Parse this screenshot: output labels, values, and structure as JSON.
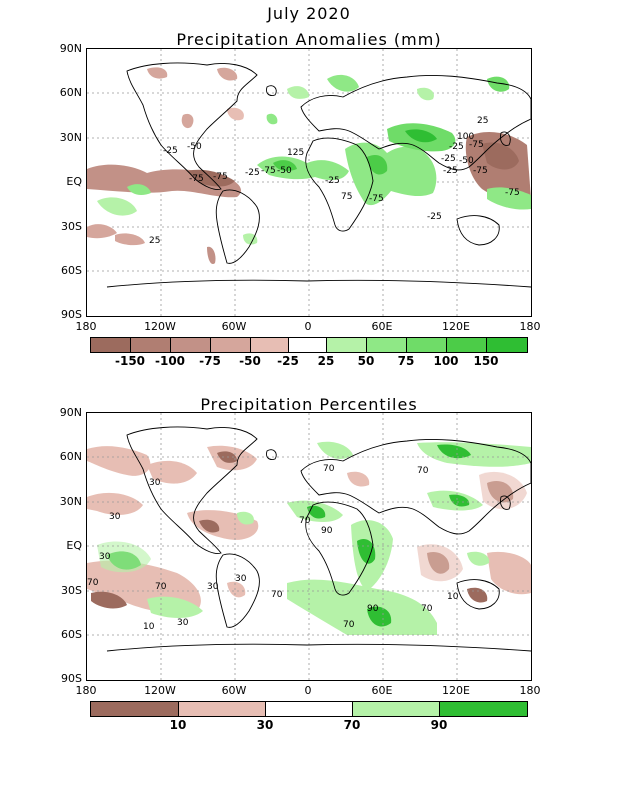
{
  "title": "July 2020",
  "panels": [
    {
      "title": "Precipitation Anomalies (mm)",
      "lat_labels": [
        "90N",
        "60N",
        "30N",
        "EQ",
        "30S",
        "60S",
        "90S"
      ],
      "lon_labels": [
        "180",
        "120W",
        "60W",
        "0",
        "60E",
        "120E",
        "180"
      ],
      "legend": {
        "labels": [
          "-150",
          "-100",
          "-75",
          "-50",
          "-25",
          "25",
          "50",
          "75",
          "100",
          "150"
        ],
        "colors": [
          "#9c6b5e",
          "#b07e72",
          "#c29187",
          "#d5a69c",
          "#e7beb4",
          "#ffffff",
          "#b5f2a8",
          "#8fe886",
          "#6fdc68",
          "#4ccc48",
          "#2fbe33"
        ]
      },
      "contour_labels": [
        "-50",
        "-25",
        "-75",
        "-75",
        "25",
        "-25",
        "-75",
        "-50",
        "125",
        "-25",
        "-75",
        "75",
        "100",
        "-25",
        "-50",
        "-25",
        "-75",
        "-25",
        "-75",
        "-25",
        "-75",
        "25"
      ]
    },
    {
      "title": "Precipitation Percentiles",
      "lat_labels": [
        "90N",
        "60N",
        "30N",
        "EQ",
        "30S",
        "60S",
        "90S"
      ],
      "lon_labels": [
        "180",
        "120W",
        "60W",
        "0",
        "60E",
        "120E",
        "180"
      ],
      "legend": {
        "labels": [
          "10",
          "30",
          "70",
          "90"
        ],
        "colors": [
          "#9c6b5e",
          "#e7beb4",
          "#ffffff",
          "#b5f2a8",
          "#2fbe33"
        ]
      },
      "contour_labels": [
        "30",
        "70",
        "70",
        "30",
        "70",
        "90",
        "30",
        "70",
        "30",
        "70",
        "10",
        "30",
        "70",
        "90",
        "70",
        "30",
        "70",
        "10"
      ]
    }
  ]
}
